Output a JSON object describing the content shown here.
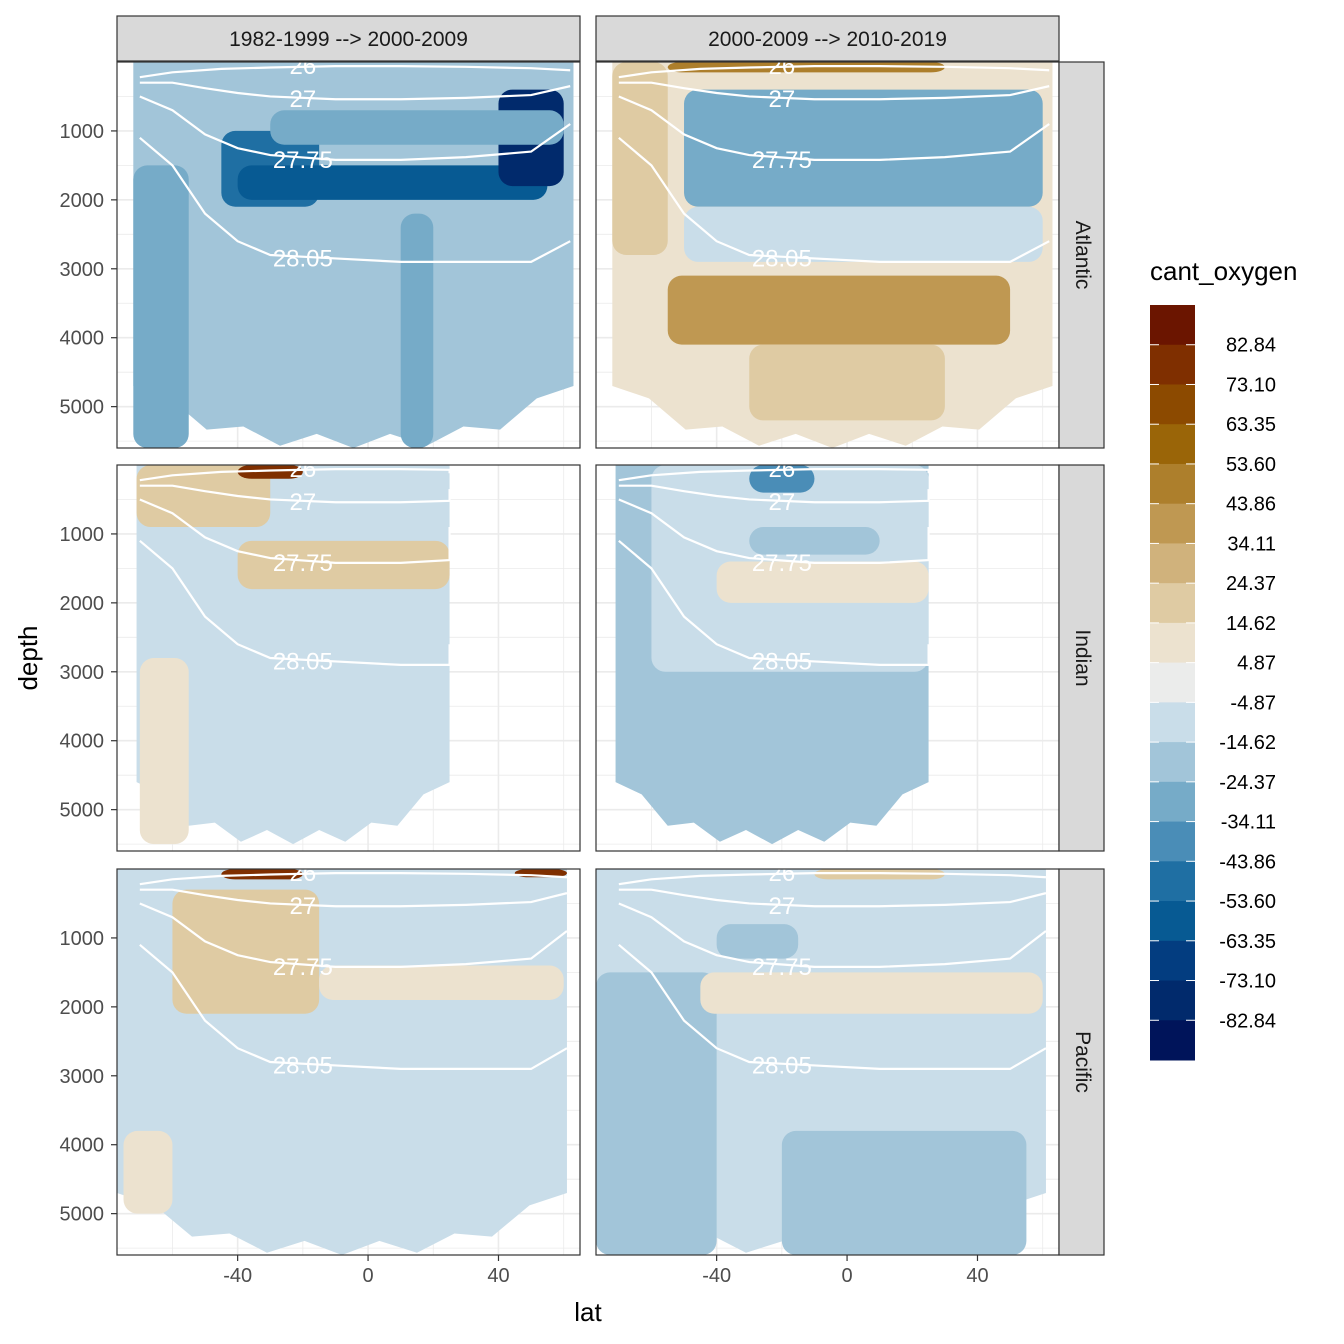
{
  "chart_data": {
    "type": "heatmap",
    "xlabel": "lat",
    "ylabel": "depth",
    "xlim": [
      -77,
      65
    ],
    "ylim": [
      5600,
      0
    ],
    "x_ticks": [
      -40,
      0,
      40
    ],
    "y_ticks": [
      1000,
      2000,
      3000,
      4000,
      5000
    ],
    "grid": true,
    "facet_columns": [
      "1982-1999 --> 2000-2009",
      "2000-2009 --> 2010-2019"
    ],
    "facet_rows": [
      "Atlantic",
      "Indian",
      "Pacific"
    ],
    "legend": {
      "title": "cant_oxygen",
      "position": "right",
      "breaks": [
        "82.84",
        "73.10",
        "63.35",
        "53.60",
        "43.86",
        "34.11",
        "24.37",
        "14.62",
        "4.87",
        "-4.87",
        "-14.62",
        "-24.37",
        "-34.11",
        "-43.86",
        "-53.60",
        "-63.35",
        "-73.10",
        "-82.84"
      ],
      "colors": [
        "#6b1500",
        "#7f2f00",
        "#8c4a00",
        "#9a6508",
        "#ad7f2c",
        "#bf9852",
        "#d0b27c",
        "#dfcba3",
        "#ece2cf",
        "#ebeceb",
        "#c9dde9",
        "#a2c5d9",
        "#76abc8",
        "#4a8db7",
        "#1f6fa3",
        "#075a93",
        "#033d80",
        "#012a6c",
        "#00145a"
      ]
    },
    "contours": [
      {
        "label": "26",
        "depth": [
          [
            -70,
            -60,
            -45,
            -30,
            -10,
            10,
            30,
            50,
            62
          ],
          [
            220,
            150,
            100,
            80,
            60,
            60,
            70,
            90,
            120
          ]
        ]
      },
      {
        "label": "27",
        "depth": [
          [
            -70,
            -60,
            -50,
            -40,
            -30,
            -10,
            10,
            30,
            50,
            62
          ],
          [
            300,
            300,
            380,
            450,
            500,
            540,
            540,
            520,
            480,
            350
          ]
        ]
      },
      {
        "label": "27.75",
        "depth": [
          [
            -70,
            -60,
            -50,
            -40,
            -30,
            -10,
            10,
            30,
            50,
            62
          ],
          [
            500,
            700,
            1050,
            1250,
            1350,
            1420,
            1420,
            1380,
            1300,
            900
          ]
        ]
      },
      {
        "label": "28.05",
        "depth": [
          [
            -70,
            -60,
            -50,
            -40,
            -30,
            -10,
            10,
            30,
            50,
            62
          ],
          [
            1100,
            1500,
            2200,
            2600,
            2800,
            2850,
            2900,
            2900,
            2900,
            2600
          ]
        ]
      }
    ],
    "panels": [
      {
        "row": 0,
        "col": 0,
        "lat_range": [
          -72,
          63
        ],
        "depth_max": 5600,
        "surface_value": -14.62,
        "patches": [
          {
            "value": -24.37,
            "lat": [
              -72,
              -55
            ],
            "depth": [
              1500,
              5600
            ]
          },
          {
            "value": -43.86,
            "lat": [
              -45,
              -15
            ],
            "depth": [
              1000,
              2100
            ]
          },
          {
            "value": -53.6,
            "lat": [
              -40,
              55
            ],
            "depth": [
              1500,
              2000
            ]
          },
          {
            "value": -73.1,
            "lat": [
              40,
              60
            ],
            "depth": [
              400,
              1800
            ]
          },
          {
            "value": -24.37,
            "lat": [
              -30,
              60
            ],
            "depth": [
              700,
              1200
            ]
          },
          {
            "value": -24.37,
            "lat": [
              10,
              20
            ],
            "depth": [
              2200,
              5600
            ]
          }
        ]
      },
      {
        "row": 0,
        "col": 1,
        "lat_range": [
          -72,
          63
        ],
        "depth_max": 5600,
        "surface_value": 14.62,
        "patches": [
          {
            "value": 24.37,
            "lat": [
              -72,
              -55
            ],
            "depth": [
              0,
              2800
            ]
          },
          {
            "value": 43.86,
            "lat": [
              -55,
              50
            ],
            "depth": [
              3100,
              4100
            ]
          },
          {
            "value": 24.37,
            "lat": [
              -30,
              30
            ],
            "depth": [
              4100,
              5200
            ]
          },
          {
            "value": -24.37,
            "lat": [
              -50,
              60
            ],
            "depth": [
              400,
              2100
            ]
          },
          {
            "value": -4.87,
            "lat": [
              -50,
              60
            ],
            "depth": [
              2100,
              2900
            ]
          },
          {
            "value": 53.6,
            "lat": [
              -55,
              30
            ],
            "depth": [
              0,
              150
            ]
          }
        ]
      },
      {
        "row": 1,
        "col": 0,
        "lat_range": [
          -71,
          25
        ],
        "depth_max": 5500,
        "surface_value": -4.87,
        "patches": [
          {
            "value": 24.37,
            "lat": [
              -71,
              -30
            ],
            "depth": [
              0,
              900
            ]
          },
          {
            "value": 24.37,
            "lat": [
              -40,
              25
            ],
            "depth": [
              1100,
              1800
            ]
          },
          {
            "value": 14.62,
            "lat": [
              -70,
              -55
            ],
            "depth": [
              2800,
              5500
            ]
          },
          {
            "value": 82.84,
            "lat": [
              -40,
              -20
            ],
            "depth": [
              0,
              200
            ]
          }
        ]
      },
      {
        "row": 1,
        "col": 1,
        "lat_range": [
          -71,
          25
        ],
        "depth_max": 5500,
        "surface_value": -14.62,
        "patches": [
          {
            "value": -4.87,
            "lat": [
              -60,
              25
            ],
            "depth": [
              0,
              3000
            ]
          },
          {
            "value": 14.62,
            "lat": [
              -40,
              25
            ],
            "depth": [
              1400,
              2000
            ]
          },
          {
            "value": -34.11,
            "lat": [
              -30,
              -10
            ],
            "depth": [
              0,
              400
            ]
          },
          {
            "value": -14.62,
            "lat": [
              -30,
              10
            ],
            "depth": [
              900,
              1300
            ]
          }
        ]
      },
      {
        "row": 2,
        "col": 0,
        "lat_range": [
          -77,
          61
        ],
        "depth_max": 5600,
        "surface_value": -4.87,
        "patches": [
          {
            "value": 24.37,
            "lat": [
              -60,
              -15
            ],
            "depth": [
              300,
              2100
            ]
          },
          {
            "value": 14.62,
            "lat": [
              -15,
              60
            ],
            "depth": [
              1400,
              1900
            ]
          },
          {
            "value": 14.62,
            "lat": [
              -75,
              -60
            ],
            "depth": [
              3800,
              5000
            ]
          },
          {
            "value": 82.84,
            "lat": [
              -45,
              -20
            ],
            "depth": [
              0,
              150
            ]
          },
          {
            "value": 82.84,
            "lat": [
              45,
              61
            ],
            "depth": [
              0,
              120
            ]
          }
        ]
      },
      {
        "row": 2,
        "col": 1,
        "lat_range": [
          -77,
          61
        ],
        "depth_max": 5600,
        "surface_value": -4.87,
        "patches": [
          {
            "value": -14.62,
            "lat": [
              -77,
              -40
            ],
            "depth": [
              1500,
              5600
            ]
          },
          {
            "value": -14.62,
            "lat": [
              -20,
              55
            ],
            "depth": [
              3800,
              5600
            ]
          },
          {
            "value": 14.62,
            "lat": [
              -45,
              60
            ],
            "depth": [
              1500,
              2100
            ]
          },
          {
            "value": -14.62,
            "lat": [
              -40,
              -15
            ],
            "depth": [
              800,
              1300
            ]
          },
          {
            "value": 24.37,
            "lat": [
              -10,
              30
            ],
            "depth": [
              0,
              150
            ]
          }
        ]
      }
    ]
  }
}
